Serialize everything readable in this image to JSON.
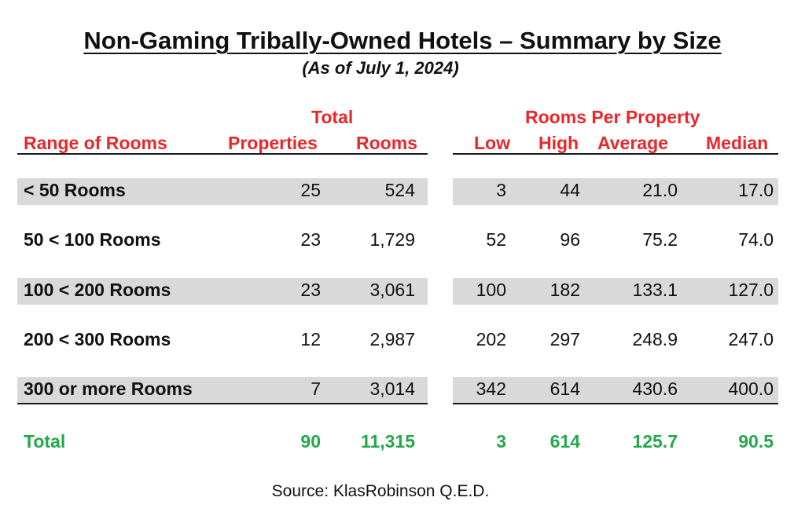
{
  "title": "Non-Gaming Tribally-Owned Hotels – Summary by Size",
  "subtitle": "(As of July 1, 2024)",
  "headers": {
    "total_group": "Total",
    "per_property_group": "Rooms Per Property",
    "range": "Range of Rooms",
    "properties": "Properties",
    "rooms": "Rooms",
    "low": "Low",
    "high": "High",
    "average": "Average",
    "median": "Median"
  },
  "rows": [
    {
      "label": "< 50 Rooms",
      "properties": "25",
      "rooms": "524",
      "low": "3",
      "high": "44",
      "average": "21.0",
      "median": "17.0",
      "shaded": true
    },
    {
      "label": "50 < 100 Rooms",
      "properties": "23",
      "rooms": "1,729",
      "low": "52",
      "high": "96",
      "average": "75.2",
      "median": "74.0",
      "shaded": false
    },
    {
      "label": "100 < 200 Rooms",
      "properties": "23",
      "rooms": "3,061",
      "low": "100",
      "high": "182",
      "average": "133.1",
      "median": "127.0",
      "shaded": true
    },
    {
      "label": "200 < 300 Rooms",
      "properties": "12",
      "rooms": "2,987",
      "low": "202",
      "high": "297",
      "average": "248.9",
      "median": "247.0",
      "shaded": false
    },
    {
      "label": "300 or more Rooms",
      "properties": "7",
      "rooms": "3,014",
      "low": "342",
      "high": "614",
      "average": "430.6",
      "median": "400.0",
      "shaded": true
    }
  ],
  "total": {
    "label": "Total",
    "properties": "90",
    "rooms": "11,315",
    "low": "3",
    "high": "614",
    "average": "125.7",
    "median": "90.5"
  },
  "source": "Source: KlasRobinson Q.E.D.",
  "colors": {
    "header": "#e8262b",
    "total": "#22a84a",
    "band": "#d9d9d9"
  }
}
